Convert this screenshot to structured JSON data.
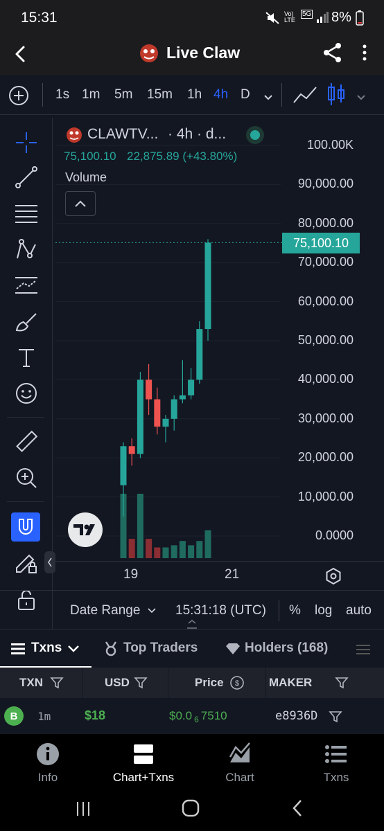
{
  "status": {
    "time": "15:31",
    "battery": "8%",
    "net": "5G"
  },
  "appbar": {
    "title": "Live Claw"
  },
  "timeframes": [
    "1s",
    "1m",
    "5m",
    "15m",
    "1h",
    "4h",
    "D"
  ],
  "active_tf": "4h",
  "legend": {
    "symbol": "CLAWTV...",
    "interval": "· 4h · d...",
    "price": "75,100.10",
    "change": "22,875.89 (+43.80%)",
    "volume_label": "Volume"
  },
  "chart_data": {
    "type": "candlestick",
    "y_axis_labels": [
      "100.00K",
      "90,000.00",
      "80,000.00",
      "70,000.00",
      "60,000.00",
      "50,000.00",
      "40,000.00",
      "30,000.00",
      "20,000.00",
      "10,000.00",
      "0.0000"
    ],
    "ylim": [
      0,
      100000
    ],
    "x_ticks": [
      "19",
      "21"
    ],
    "last_price": 75100.1,
    "candles": [
      {
        "o": 13000,
        "h": 24000,
        "l": 5000,
        "c": 23000
      },
      {
        "o": 23000,
        "h": 25000,
        "l": 18000,
        "c": 21000
      },
      {
        "o": 21000,
        "h": 42000,
        "l": 20000,
        "c": 40000
      },
      {
        "o": 40000,
        "h": 44000,
        "l": 31000,
        "c": 35000
      },
      {
        "o": 35000,
        "h": 38000,
        "l": 26000,
        "c": 28000
      },
      {
        "o": 28000,
        "h": 31000,
        "l": 24000,
        "c": 30000
      },
      {
        "o": 30000,
        "h": 36000,
        "l": 27000,
        "c": 35000
      },
      {
        "o": 35000,
        "h": 45000,
        "l": 34000,
        "c": 36000
      },
      {
        "o": 36000,
        "h": 43000,
        "l": 35000,
        "c": 40000
      },
      {
        "o": 40000,
        "h": 55000,
        "l": 39000,
        "c": 53000
      },
      {
        "o": 53000,
        "h": 76000,
        "l": 50000,
        "c": 75100
      }
    ],
    "volumes": [
      30,
      9,
      30,
      9,
      5,
      5,
      6,
      8,
      6,
      8,
      13
    ]
  },
  "bottombar": {
    "date_range": "Date Range",
    "time": "15:31:18 (UTC)",
    "pct": "%",
    "log": "log",
    "auto": "auto"
  },
  "tabs": {
    "txns": "Txns",
    "top_traders": "Top Traders",
    "holders": "Holders (168)"
  },
  "table": {
    "headers": [
      "TXN",
      "USD",
      "Price",
      "MAKER"
    ],
    "row": {
      "type": "B",
      "age": "1m",
      "usd": "$18",
      "price_main": "$0.0",
      "price_sub": "6",
      "price_tail": "7510",
      "maker": "e8936D"
    }
  },
  "nav": {
    "info": "Info",
    "chart_txns": "Chart+Txns",
    "chart": "Chart",
    "txns": "Txns"
  }
}
